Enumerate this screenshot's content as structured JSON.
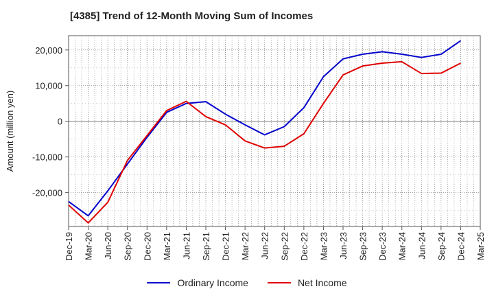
{
  "chart_data": {
    "type": "line",
    "title": "[4385]  Trend of 12-Month Moving Sum of Incomes",
    "ylabel": "Amount (million yen)",
    "xlabel": "",
    "x": [
      "Dec-19",
      "Mar-20",
      "Jun-20",
      "Sep-20",
      "Dec-20",
      "Mar-21",
      "Jun-21",
      "Sep-21",
      "Dec-21",
      "Mar-22",
      "Jun-22",
      "Sep-22",
      "Dec-22",
      "Mar-23",
      "Jun-23",
      "Sep-23",
      "Dec-23",
      "Mar-24",
      "Jun-24",
      "Sep-24",
      "Dec-24",
      "Mar-25"
    ],
    "ylim": [
      -29500,
      24000
    ],
    "yticks": [
      20000,
      10000,
      0,
      -10000,
      -20000
    ],
    "ytick_labels": [
      "20,000",
      "10,000",
      "0",
      "-10,000",
      "-20,000"
    ],
    "grid": true,
    "legend_position": "bottom",
    "series": [
      {
        "name": "Ordinary Income",
        "color": "#0000cc",
        "values": [
          -22500,
          -26500,
          -19500,
          -12000,
          -4500,
          2500,
          5000,
          5500,
          2000,
          -1000,
          -3800,
          -1500,
          3800,
          12500,
          17500,
          18800,
          19500,
          18800,
          17900,
          18800,
          22600,
          null
        ]
      },
      {
        "name": "Net Income",
        "color": "#e00000",
        "values": [
          -23500,
          -28500,
          -22700,
          -11000,
          -4000,
          3000,
          5600,
          1300,
          -1000,
          -5500,
          -7500,
          -7000,
          -3500,
          5000,
          13000,
          15500,
          16300,
          16700,
          13400,
          13500,
          16300,
          null
        ]
      }
    ]
  }
}
